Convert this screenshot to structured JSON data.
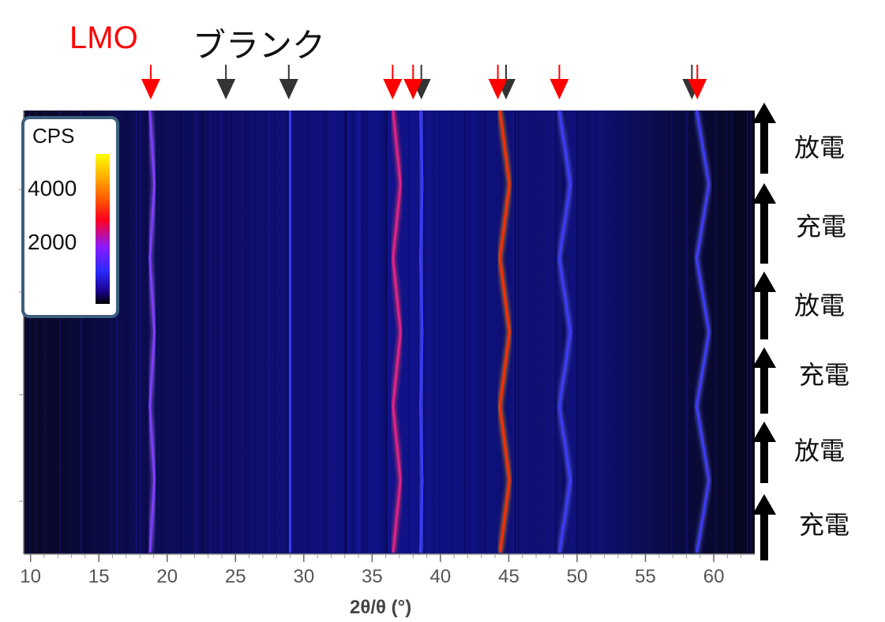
{
  "chart_data": {
    "type": "heatmap",
    "xlabel": "2θ/θ (°)",
    "xlim": [
      9.5,
      63
    ],
    "xticks": [
      10,
      15,
      20,
      25,
      30,
      35,
      40,
      45,
      50,
      55,
      60
    ],
    "colorbar": {
      "title": "CPS",
      "ticks": [
        4000,
        2000
      ],
      "range": [
        0,
        5000
      ],
      "colors": [
        "#000000",
        "#2a2aff",
        "#8a1aff",
        "#ff0020",
        "#ff8000",
        "#ffff00"
      ]
    },
    "peaks": [
      {
        "center": 18.9,
        "intensity": 1500,
        "shift": 0.35
      },
      {
        "center": 29.0,
        "intensity": 800,
        "shift": 0
      },
      {
        "center": 36.8,
        "intensity": 2200,
        "shift": 0.55
      },
      {
        "center": 38.6,
        "intensity": 900,
        "shift": 0.15
      },
      {
        "center": 44.7,
        "intensity": 3200,
        "shift": 0.7
      },
      {
        "center": 49.1,
        "intensity": 1000,
        "shift": 0.8
      },
      {
        "center": 59.2,
        "intensity": 1100,
        "shift": 0.9
      }
    ],
    "markers": {
      "lmo_label": "LMO",
      "blank_label": "ブランク",
      "lmo_color": "#ff0000",
      "blank_color": "#333333",
      "lmo_positions": [
        18.8,
        36.5,
        38.0,
        44.2,
        48.7,
        58.8
      ],
      "blank_positions": [
        24.3,
        28.9,
        38.6,
        44.8,
        58.4
      ]
    },
    "cycles": [
      "放電",
      "充電",
      "放電",
      "充電",
      "放電",
      "充電"
    ]
  }
}
